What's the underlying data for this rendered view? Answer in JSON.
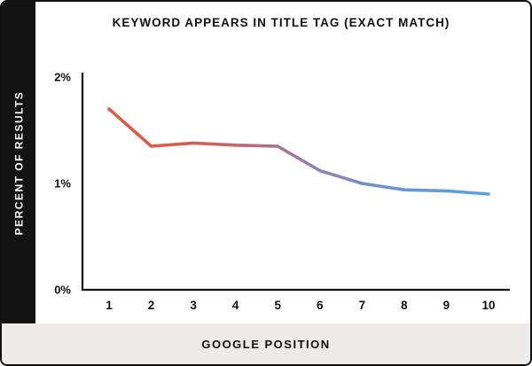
{
  "frame": {
    "border_color": "#111111",
    "left_bar_color": "#131313",
    "bottom_bar_color": "#edeae7",
    "background_color": "#ffffff"
  },
  "chart_data": {
    "type": "line",
    "title": "KEYWORD APPEARS IN TITLE TAG (EXACT MATCH)",
    "xlabel": "GOOGLE POSITION",
    "ylabel": "PERCENT OF RESULTS",
    "x": [
      1,
      2,
      3,
      4,
      5,
      6,
      7,
      8,
      9,
      10
    ],
    "values": [
      1.7,
      1.35,
      1.38,
      1.36,
      1.35,
      1.12,
      1.0,
      0.94,
      0.93,
      0.9
    ],
    "ylim": [
      0,
      2
    ],
    "yticks": [
      {
        "value": 0,
        "label": "0%"
      },
      {
        "value": 1,
        "label": "1%"
      },
      {
        "value": 2,
        "label": "2%"
      }
    ],
    "grid": false,
    "legend": false,
    "axis_color": "#111111",
    "line_gradient": [
      {
        "offset": "0%",
        "color": "#e25b41"
      },
      {
        "offset": "18%",
        "color": "#d3604f"
      },
      {
        "offset": "40%",
        "color": "#b06e7e"
      },
      {
        "offset": "55%",
        "color": "#8f84ae"
      },
      {
        "offset": "72%",
        "color": "#7092c9"
      },
      {
        "offset": "100%",
        "color": "#5aa0e2"
      }
    ]
  }
}
